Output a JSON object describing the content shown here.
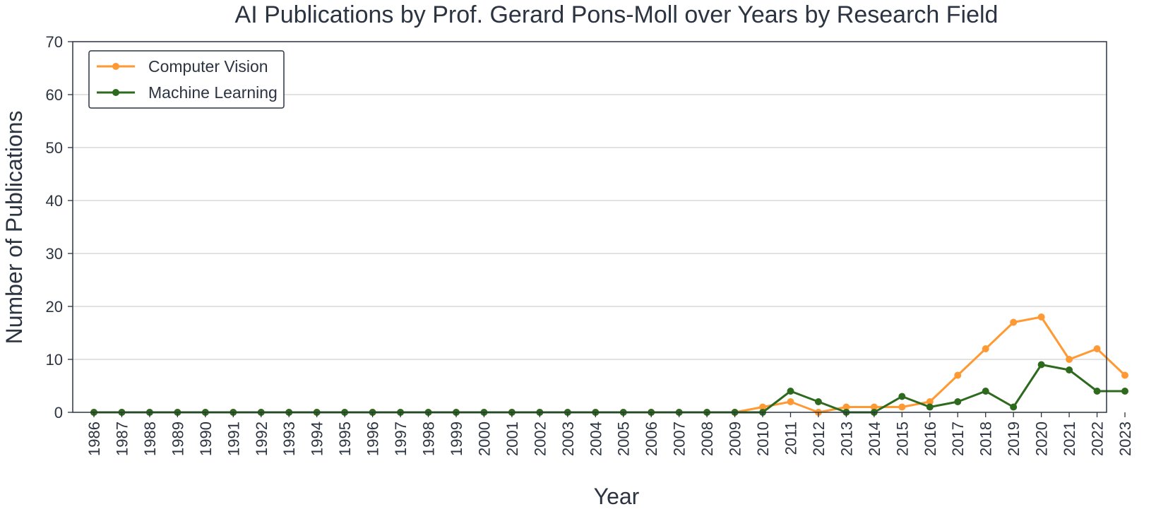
{
  "chart_data": {
    "type": "line",
    "title": "AI Publications by Prof. Gerard Pons-Moll over Years by Research Field",
    "xlabel": "Year",
    "ylabel": "Number of Publications",
    "ylim": [
      0,
      70
    ],
    "yticks": [
      0,
      10,
      20,
      30,
      40,
      50,
      60,
      70
    ],
    "grid": "horizontal",
    "legend_position": "top-left",
    "x": [
      "1986",
      "1987",
      "1988",
      "1989",
      "1990",
      "1991",
      "1992",
      "1993",
      "1994",
      "1995",
      "1996",
      "1997",
      "1998",
      "1999",
      "2000",
      "2001",
      "2002",
      "2003",
      "2004",
      "2005",
      "2006",
      "2007",
      "2008",
      "2009",
      "2010",
      "2011",
      "2012",
      "2013",
      "2014",
      "2015",
      "2016",
      "2017",
      "2018",
      "2019",
      "2020",
      "2021",
      "2022",
      "2023"
    ],
    "series": [
      {
        "name": "Computer Vision",
        "color": "#ff9933",
        "values": [
          0,
          0,
          0,
          0,
          0,
          0,
          0,
          0,
          0,
          0,
          0,
          0,
          0,
          0,
          0,
          0,
          0,
          0,
          0,
          0,
          0,
          0,
          0,
          0,
          1,
          2,
          0,
          1,
          1,
          1,
          2,
          7,
          12,
          17,
          18,
          10,
          12,
          7
        ]
      },
      {
        "name": "Machine Learning",
        "color": "#2d6a1e",
        "values": [
          0,
          0,
          0,
          0,
          0,
          0,
          0,
          0,
          0,
          0,
          0,
          0,
          0,
          0,
          0,
          0,
          0,
          0,
          0,
          0,
          0,
          0,
          0,
          0,
          0,
          4,
          2,
          0,
          0,
          3,
          1,
          2,
          4,
          1,
          9,
          8,
          4,
          4
        ]
      }
    ]
  }
}
